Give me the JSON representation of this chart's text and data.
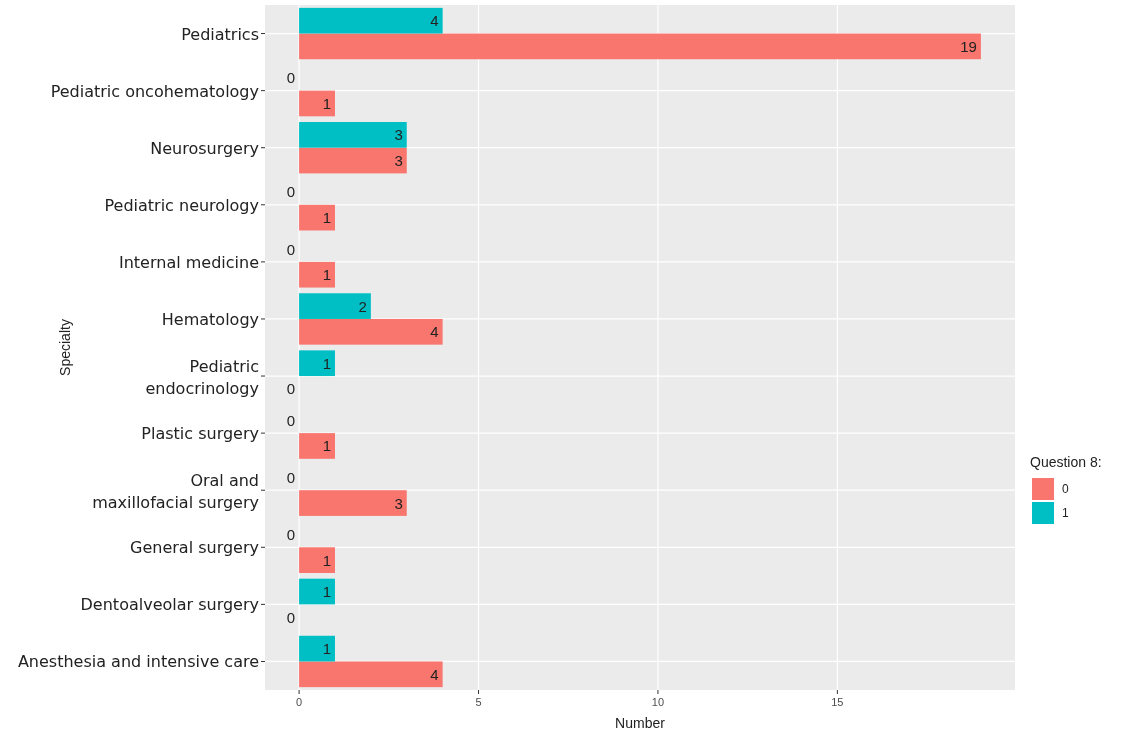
{
  "chart_data": {
    "type": "bar",
    "orientation": "horizontal",
    "xlabel": "Number",
    "ylabel": "Specialty",
    "legend_title": "Question 8:",
    "legend": "right",
    "categories": [
      "Pediatrics",
      "Pediatric oncohematology",
      "Neurosurgery",
      "Pediatric neurology",
      "Internal medicine",
      "Hematology",
      "Pediatric\nendocrinology",
      "Plastic surgery",
      "Oral and\nmaxillofacial surgery",
      "General surgery",
      "Dentoalveolar surgery",
      "Anesthesia and intensive care"
    ],
    "series": [
      {
        "name": "0",
        "color": "#f8766d",
        "values": [
          19,
          1,
          3,
          1,
          1,
          4,
          0,
          1,
          3,
          1,
          0,
          4
        ]
      },
      {
        "name": "1",
        "color": "#00bfc4",
        "values": [
          4,
          0,
          3,
          0,
          0,
          2,
          1,
          0,
          0,
          0,
          1,
          1
        ]
      }
    ],
    "xlim": [
      -0.95,
      19.95
    ],
    "xticks": [
      0,
      5,
      10,
      15
    ],
    "grid": true,
    "data_labels": true
  }
}
